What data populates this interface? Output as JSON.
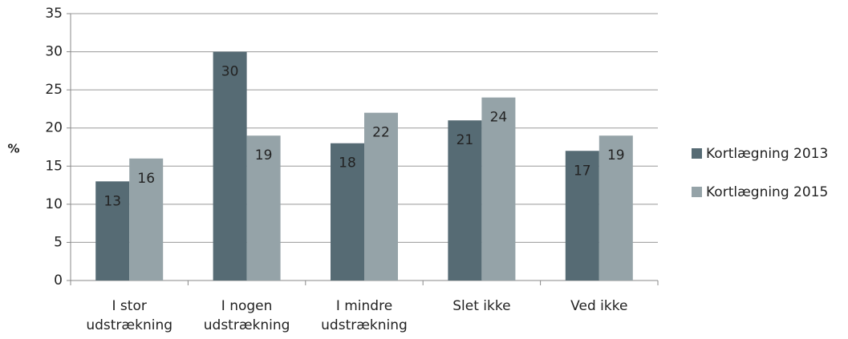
{
  "chart_data": {
    "type": "bar",
    "y_label": "%",
    "categories": [
      "I stor\nudstrækning",
      "I nogen\nudstrækning",
      "I mindre\nudstrækning",
      "Slet ikke",
      "Ved ikke"
    ],
    "series": [
      {
        "name": "Kortlægning 2013",
        "color": "#566b74",
        "values": [
          13,
          30,
          18,
          21,
          17
        ]
      },
      {
        "name": "Kortlægning 2015",
        "color": "#95a3a8",
        "values": [
          16,
          19,
          22,
          24,
          19
        ]
      }
    ],
    "ylim": [
      0,
      35
    ],
    "yticks": [
      0,
      5,
      10,
      15,
      20,
      25,
      30,
      35
    ],
    "grid": true,
    "legend": "right"
  }
}
